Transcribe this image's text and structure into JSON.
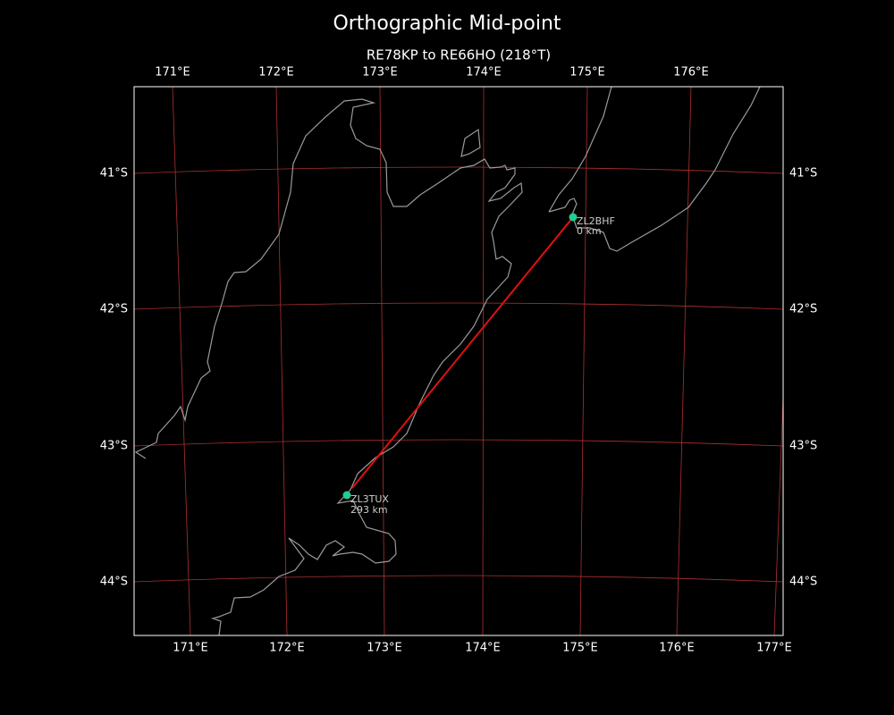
{
  "header": {
    "title": "Orthographic Mid-point",
    "subtitle": "RE78KP to RE66HO (218°T)"
  },
  "map": {
    "top_ticks": [
      "171°E",
      "172°E",
      "173°E",
      "174°E",
      "175°E",
      "176°E"
    ],
    "bottom_ticks": [
      "171°E",
      "172°E",
      "173°E",
      "174°E",
      "175°E",
      "176°E",
      "177°E"
    ],
    "left_ticks": [
      "41°S",
      "42°S",
      "43°S",
      "44°S"
    ],
    "right_ticks": [
      "41°S",
      "42°S",
      "43°S",
      "44°S"
    ],
    "stations": [
      {
        "call": "ZL2BHF",
        "distance": "0 km"
      },
      {
        "call": "ZL3TUX",
        "distance": "293 km"
      }
    ]
  }
}
